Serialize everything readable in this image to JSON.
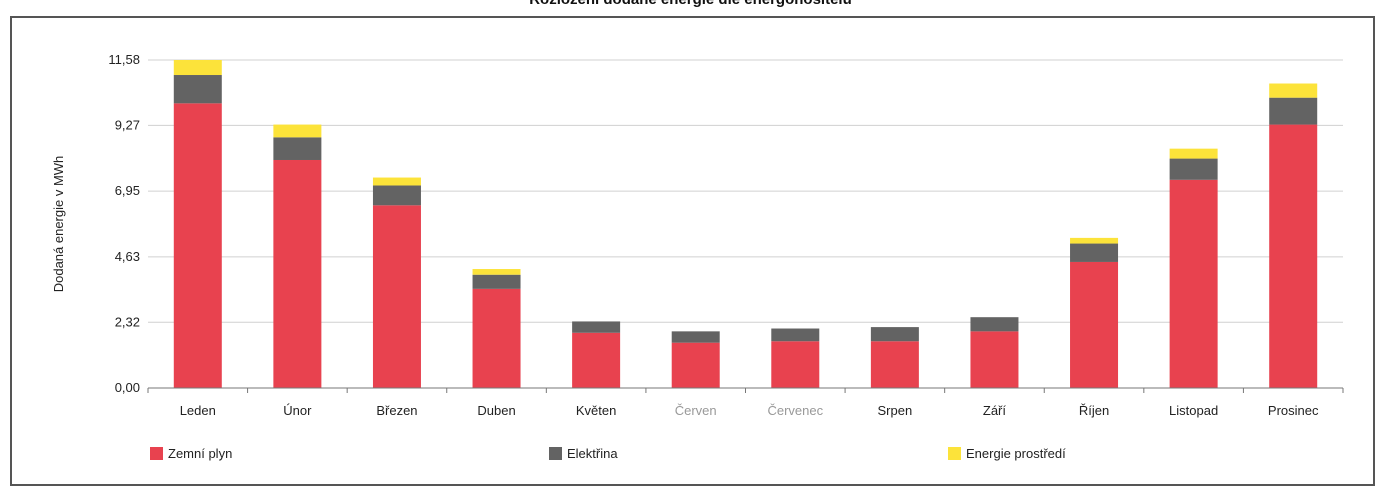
{
  "title": "Rozložení dodané energie dle energonositelů",
  "chart_data": {
    "type": "bar",
    "stacked": true,
    "ylabel": "Dodaná energie v MWh",
    "yticks": [
      "0,00",
      "2,32",
      "4,63",
      "6,95",
      "9,27",
      "11,58"
    ],
    "ylim": [
      0,
      11.58
    ],
    "categories": [
      "Leden",
      "Únor",
      "Březen",
      "Duben",
      "Květen",
      "Červen",
      "Červenec",
      "Srpen",
      "Září",
      "Říjen",
      "Listopad",
      "Prosinec"
    ],
    "faded_categories": [
      "Červen",
      "Červenec"
    ],
    "grid": true,
    "legend_position": "bottom",
    "series": [
      {
        "name": "Zemní plyn",
        "color": "#e8424f",
        "values": [
          10.05,
          8.05,
          6.45,
          3.5,
          1.95,
          1.6,
          1.65,
          1.65,
          2.0,
          4.45,
          7.35,
          9.3
        ]
      },
      {
        "name": "Elektřina",
        "color": "#636363",
        "values": [
          1.0,
          0.8,
          0.7,
          0.5,
          0.4,
          0.4,
          0.45,
          0.5,
          0.5,
          0.65,
          0.75,
          0.95
        ]
      },
      {
        "name": "Energie prostředí",
        "color": "#fce33a",
        "values": [
          0.53,
          0.45,
          0.28,
          0.2,
          0.0,
          0.0,
          0.0,
          0.0,
          0.0,
          0.2,
          0.35,
          0.5
        ]
      }
    ]
  }
}
